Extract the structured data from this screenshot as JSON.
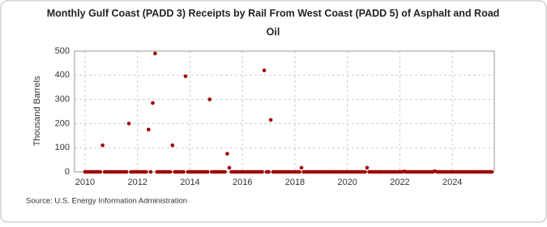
{
  "chart_data": {
    "type": "scatter",
    "title": "Monthly Gulf Coast (PADD 3) Receipts by Rail From West Coast (PADD 5) of Asphalt and Road Oil",
    "y_label": "Thousand Barrels",
    "source": "Source: U.S. Energy Information Administration",
    "color": "#a00000",
    "grid": true,
    "xlim": [
      2009.6,
      2025.6
    ],
    "xticks": [
      2010,
      2012,
      2014,
      2016,
      2018,
      2020,
      2022,
      2024
    ],
    "ylim": [
      0,
      500
    ],
    "yticks": [
      0,
      100,
      200,
      300,
      400,
      500
    ],
    "x": [
      2010,
      2010.08,
      2010.17,
      2010.25,
      2010.33,
      2010.42,
      2010.5,
      2010.58,
      2010.67,
      2010.75,
      2010.83,
      2010.92,
      2011,
      2011.08,
      2011.17,
      2011.25,
      2011.33,
      2011.42,
      2011.5,
      2011.58,
      2011.67,
      2011.75,
      2011.83,
      2011.92,
      2012,
      2012.08,
      2012.17,
      2012.25,
      2012.33,
      2012.42,
      2012.5,
      2012.58,
      2012.67,
      2012.75,
      2012.83,
      2012.92,
      2013,
      2013.08,
      2013.17,
      2013.25,
      2013.33,
      2013.42,
      2013.5,
      2013.58,
      2013.67,
      2013.75,
      2013.83,
      2013.92,
      2014,
      2014.08,
      2014.17,
      2014.25,
      2014.33,
      2014.42,
      2014.5,
      2014.58,
      2014.67,
      2014.75,
      2014.83,
      2014.92,
      2015,
      2015.08,
      2015.17,
      2015.25,
      2015.33,
      2015.42,
      2015.5,
      2015.58,
      2015.67,
      2015.75,
      2015.83,
      2015.92,
      2016,
      2016.08,
      2016.17,
      2016.25,
      2016.33,
      2016.42,
      2016.5,
      2016.58,
      2016.67,
      2016.75,
      2016.83,
      2016.92,
      2017,
      2017.08,
      2017.17,
      2017.25,
      2017.33,
      2017.42,
      2017.5,
      2017.58,
      2017.67,
      2017.75,
      2017.83,
      2017.92,
      2018,
      2018.08,
      2018.17,
      2018.25,
      2018.33,
      2018.42,
      2018.5,
      2018.58,
      2018.67,
      2018.75,
      2018.83,
      2018.92,
      2019,
      2019.08,
      2019.17,
      2019.25,
      2019.33,
      2019.42,
      2019.5,
      2019.58,
      2019.67,
      2019.75,
      2019.83,
      2019.92,
      2020,
      2020.08,
      2020.17,
      2020.25,
      2020.33,
      2020.42,
      2020.5,
      2020.58,
      2020.67,
      2020.75,
      2020.83,
      2020.92,
      2021,
      2021.08,
      2021.17,
      2021.25,
      2021.33,
      2021.42,
      2021.5,
      2021.58,
      2021.67,
      2021.75,
      2021.83,
      2021.92,
      2022,
      2022.08,
      2022.17,
      2022.25,
      2022.33,
      2022.42,
      2022.5,
      2022.58,
      2022.67,
      2022.75,
      2022.83,
      2022.92,
      2023,
      2023.08,
      2023.17,
      2023.25,
      2023.33,
      2023.42,
      2023.5,
      2023.58,
      2023.67,
      2023.75,
      2023.83,
      2023.92,
      2024,
      2024.08,
      2024.17,
      2024.25,
      2024.33,
      2024.42,
      2024.5,
      2024.58,
      2024.67,
      2024.75,
      2024.83,
      2024.92,
      2025,
      2025.08,
      2025.17,
      2025.25,
      2025.33,
      2025.42,
      2025.5
    ],
    "values": [
      0,
      0,
      0,
      0,
      0,
      0,
      0,
      0,
      110,
      0,
      0,
      0,
      0,
      0,
      0,
      0,
      0,
      0,
      0,
      0,
      200,
      0,
      0,
      0,
      0,
      0,
      0,
      0,
      0,
      175,
      0,
      285,
      490,
      0,
      0,
      0,
      0,
      0,
      0,
      0,
      110,
      0,
      0,
      0,
      0,
      0,
      396,
      0,
      0,
      0,
      0,
      0,
      0,
      0,
      0,
      0,
      0,
      300,
      0,
      0,
      0,
      0,
      0,
      0,
      0,
      75,
      17,
      0,
      0,
      0,
      0,
      0,
      0,
      0,
      0,
      0,
      0,
      0,
      0,
      0,
      0,
      0,
      420,
      0,
      0,
      215,
      0,
      0,
      0,
      0,
      0,
      0,
      0,
      0,
      0,
      0,
      0,
      0,
      0,
      17,
      0,
      0,
      0,
      0,
      0,
      0,
      0,
      0,
      0,
      0,
      0,
      0,
      0,
      0,
      0,
      0,
      0,
      0,
      0,
      0,
      0,
      0,
      0,
      0,
      0,
      0,
      0,
      0,
      0,
      17,
      0,
      0,
      0,
      0,
      0,
      0,
      0,
      0,
      0,
      0,
      0,
      0,
      0,
      0,
      0,
      0,
      2,
      0,
      0,
      0,
      0,
      0,
      0,
      0,
      0,
      0,
      0,
      0,
      0,
      0,
      3,
      0,
      0,
      0,
      0,
      0,
      0,
      0,
      0,
      0,
      0,
      0,
      0,
      0,
      0,
      0,
      0,
      0,
      0,
      0,
      0,
      0,
      0,
      0,
      0,
      0,
      0
    ]
  }
}
